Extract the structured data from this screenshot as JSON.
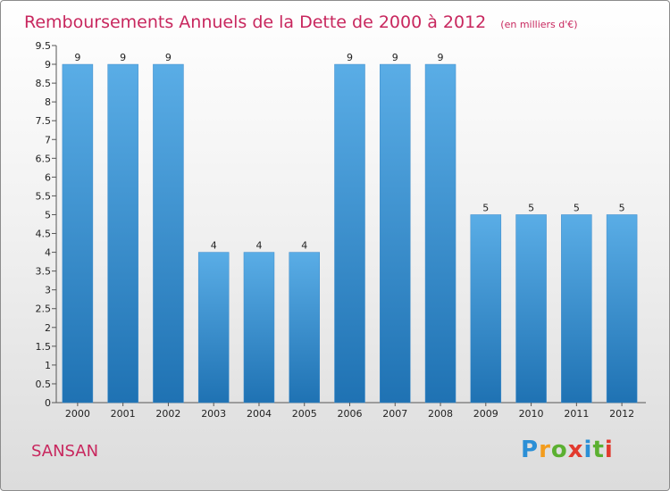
{
  "chart_data": {
    "type": "bar",
    "title": "Remboursements Annuels de la Dette de 2000 à 2012",
    "subtitle": "(en milliers d'€)",
    "categories": [
      "2000",
      "2001",
      "2002",
      "2003",
      "2004",
      "2005",
      "2006",
      "2007",
      "2008",
      "2009",
      "2010",
      "2011",
      "2012"
    ],
    "values": [
      9,
      9,
      9,
      4,
      4,
      4,
      9,
      9,
      9,
      5,
      5,
      5,
      5
    ],
    "data_labels": [
      "9",
      "9",
      "9",
      "4",
      "4",
      "4",
      "9",
      "9",
      "9",
      "5",
      "5",
      "5",
      "5"
    ],
    "ylim": [
      0,
      9.5
    ],
    "yticks": [
      "0",
      "0.5",
      "1",
      "1.5",
      "2",
      "2.5",
      "3",
      "3.5",
      "4",
      "4.5",
      "5",
      "5.5",
      "6",
      "6.5",
      "7",
      "7.5",
      "8",
      "8.5",
      "9",
      "9.5"
    ],
    "grid": false,
    "bar_color_top": "#5aade6",
    "bar_color_bottom": "#1f72b3"
  },
  "footer": {
    "city": "SANSAN",
    "logo_letters": [
      "P",
      "r",
      "o",
      "x",
      "i",
      "t",
      "i"
    ],
    "logo_colors": [
      "#2b8fd6",
      "#f39c1d",
      "#5bb031",
      "#e23a2e",
      "#2b8fd6",
      "#5bb031",
      "#e23a2e"
    ]
  }
}
